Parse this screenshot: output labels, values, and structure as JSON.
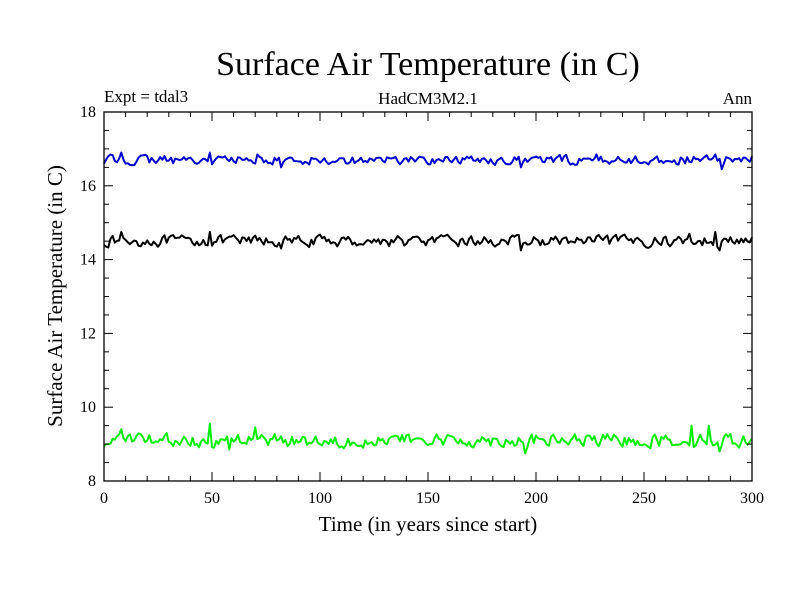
{
  "chart_data": {
    "type": "line",
    "title": "Surface Air Temperature (in C)",
    "subtitle_left": "Expt = tdal3",
    "subtitle_center": "HadCM3M2.1",
    "subtitle_right": "Ann",
    "xlabel": "Time (in years since start)",
    "ylabel": "Surface Air Temperature (in C)",
    "xlim": [
      0,
      300
    ],
    "ylim": [
      8,
      18
    ],
    "xticks": [
      0,
      50,
      100,
      150,
      200,
      250,
      300
    ],
    "yticks": [
      8,
      10,
      12,
      14,
      16,
      18
    ],
    "xminor_step": 10,
    "yminor_step": 0.5,
    "grid": false,
    "series": [
      {
        "name": "global",
        "color": "#000000",
        "mean": 14.5,
        "amplitude": 0.13,
        "start": 14.4,
        "peaks": [
          [
            8,
            14.75
          ],
          [
            49,
            14.75
          ],
          [
            70,
            14.65
          ],
          [
            271,
            14.7
          ],
          [
            283,
            14.75
          ]
        ],
        "troughs": [
          [
            82,
            14.3
          ],
          [
            193,
            14.25
          ],
          [
            285,
            14.25
          ]
        ],
        "end": 14.6
      },
      {
        "name": "upper",
        "color": "#0000cc",
        "mean": 16.7,
        "amplitude": 0.11,
        "start": 16.6,
        "peaks": [
          [
            8,
            16.9
          ],
          [
            49,
            16.9
          ],
          [
            71,
            16.85
          ],
          [
            228,
            16.85
          ],
          [
            283,
            16.85
          ]
        ],
        "troughs": [
          [
            82,
            16.5
          ],
          [
            193,
            16.5
          ],
          [
            286,
            16.45
          ]
        ],
        "end": 16.8
      },
      {
        "name": "lower",
        "color": "#00ee00",
        "mean": 9.1,
        "amplitude": 0.16,
        "start": 8.95,
        "peaks": [
          [
            8,
            9.4
          ],
          [
            49,
            9.55
          ],
          [
            70,
            9.45
          ],
          [
            272,
            9.5
          ],
          [
            280,
            9.5
          ]
        ],
        "troughs": [
          [
            58,
            8.85
          ],
          [
            195,
            8.75
          ],
          [
            285,
            8.8
          ]
        ],
        "end": 9.15
      }
    ]
  }
}
